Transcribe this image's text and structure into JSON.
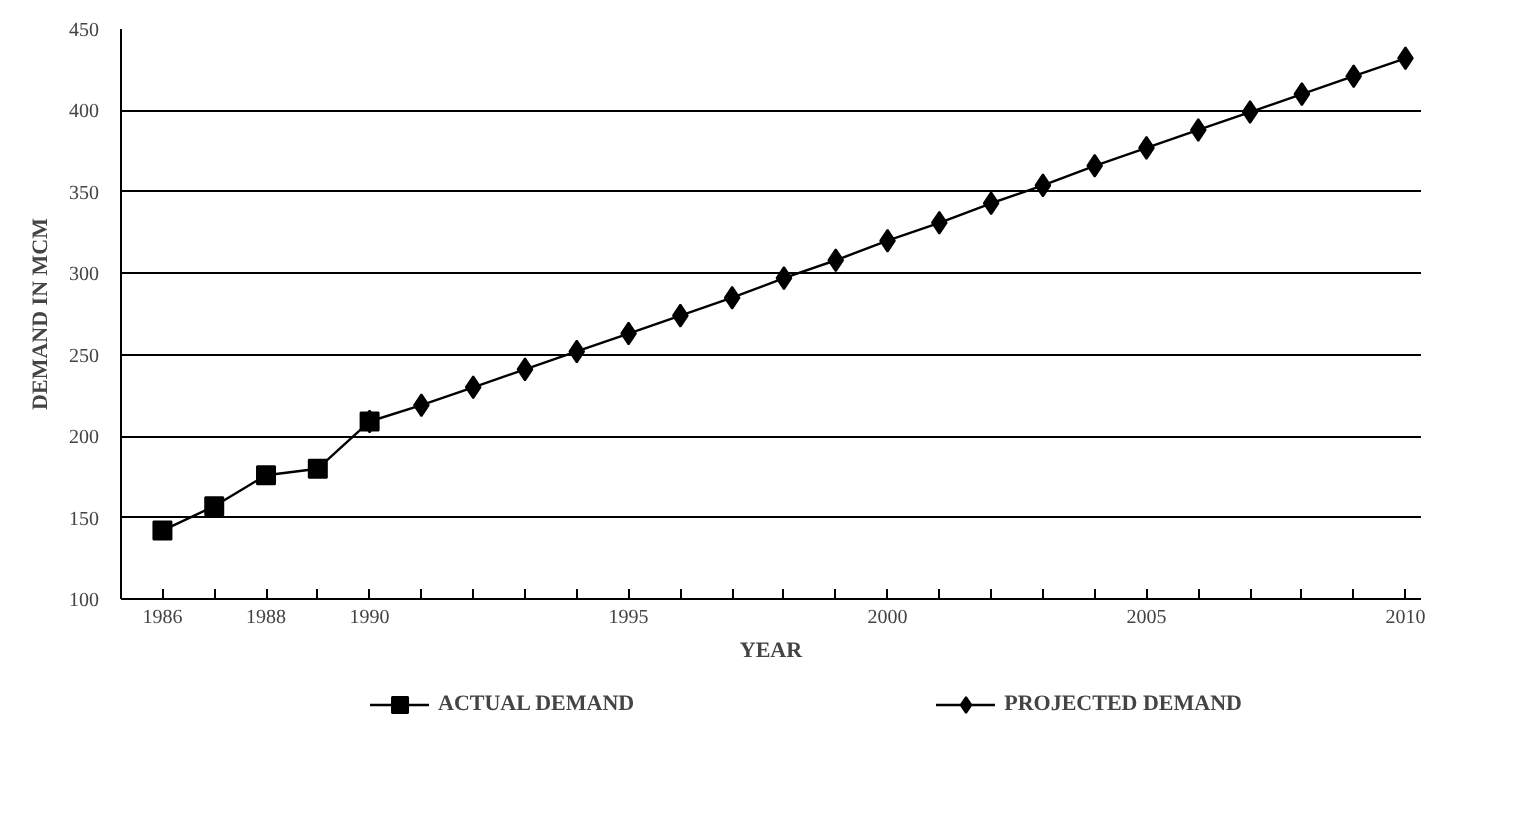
{
  "chart_data": {
    "type": "line",
    "xlabel": "YEAR",
    "ylabel": "DEMAND IN MCM",
    "xlim": [
      1985.2,
      2010.3
    ],
    "ylim": [
      100,
      450
    ],
    "xticks": [
      1986,
      {
        "value": 1987,
        "label": null
      },
      1988,
      {
        "value": 1989,
        "label": null
      },
      1990,
      {
        "value": 1991,
        "label": null
      },
      {
        "value": 1992,
        "label": null
      },
      {
        "value": 1993,
        "label": null
      },
      {
        "value": 1994,
        "label": null
      },
      1995,
      {
        "value": 1996,
        "label": null
      },
      {
        "value": 1997,
        "label": null
      },
      {
        "value": 1998,
        "label": null
      },
      {
        "value": 1999,
        "label": null
      },
      2000,
      {
        "value": 2001,
        "label": null
      },
      {
        "value": 2002,
        "label": null
      },
      {
        "value": 2003,
        "label": null
      },
      {
        "value": 2004,
        "label": null
      },
      2005,
      {
        "value": 2006,
        "label": null
      },
      {
        "value": 2007,
        "label": null
      },
      {
        "value": 2008,
        "label": null
      },
      {
        "value": 2009,
        "label": null
      },
      2010
    ],
    "yticks": [
      100,
      150,
      200,
      250,
      300,
      350,
      400,
      450
    ],
    "grid": "y",
    "legend": "bottom",
    "line_style": "solid",
    "series": [
      {
        "name": "ACTUAL DEMAND",
        "color": "#000000",
        "marker": "square",
        "x": [
          1986,
          1987,
          1988,
          1989,
          1990
        ],
        "values": [
          142,
          157,
          176,
          180,
          209
        ]
      },
      {
        "name": "PROJECTED DEMAND",
        "color": "#000000",
        "marker": "diamond",
        "x": [
          1990,
          1991,
          1992,
          1993,
          1994,
          1995,
          1996,
          1997,
          1998,
          1999,
          2000,
          2001,
          2002,
          2003,
          2004,
          2005,
          2006,
          2007,
          2008,
          2009,
          2010
        ],
        "values": [
          209,
          219,
          230,
          241,
          252,
          263,
          274,
          285,
          297,
          308,
          320,
          331,
          343,
          354,
          366,
          377,
          388,
          399,
          410,
          421,
          432
        ]
      }
    ]
  }
}
